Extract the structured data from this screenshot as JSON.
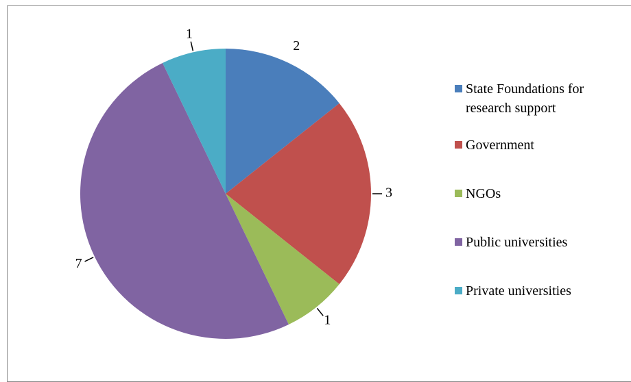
{
  "chart_data": {
    "type": "pie",
    "categories": [
      "State Foundations for research support",
      "Government",
      "NGOs",
      "Public universities",
      "Private universities"
    ],
    "values": [
      2,
      3,
      1,
      7,
      1
    ],
    "colors": [
      "#4a7ebb",
      "#c0504d",
      "#9bbb59",
      "#8064a2",
      "#4bacc6"
    ],
    "legend": "right"
  }
}
